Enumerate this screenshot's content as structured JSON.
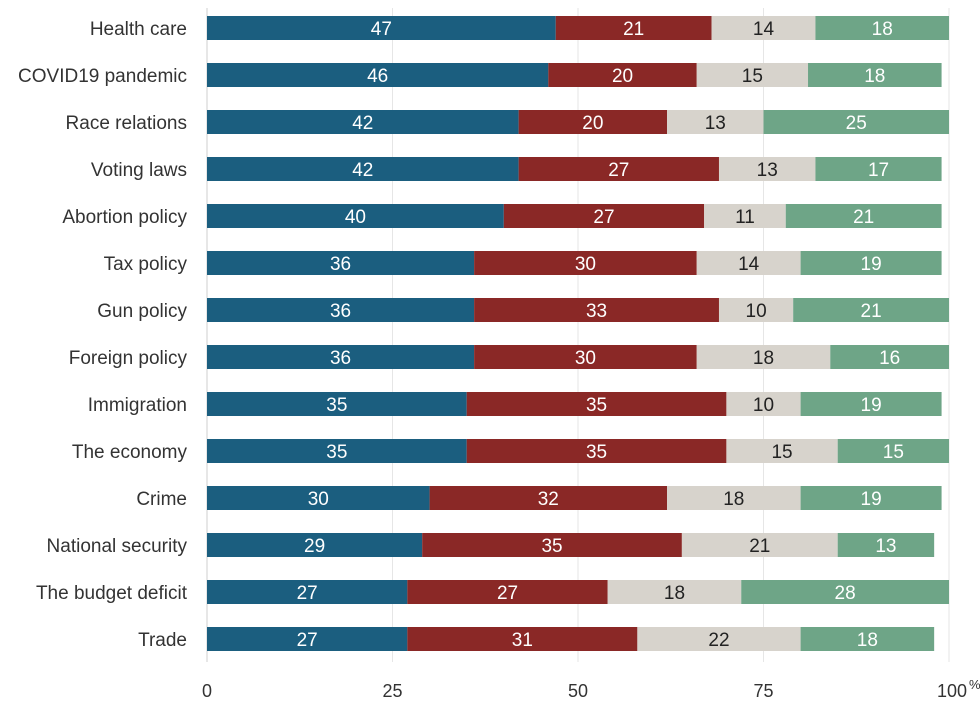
{
  "chart_data": {
    "type": "bar",
    "orientation": "horizontal",
    "stacked": true,
    "categories": [
      "Health care",
      "COVID19 pandemic",
      "Race relations",
      "Voting laws",
      "Abortion policy",
      "Tax policy",
      "Gun policy",
      "Foreign policy",
      "Immigration",
      "The economy",
      "Crime",
      "National security",
      "The budget deficit",
      "Trade"
    ],
    "series": [
      {
        "color": "#1b5e7f",
        "label_color": "#ffffff",
        "values": [
          47,
          46,
          42,
          42,
          40,
          36,
          36,
          36,
          35,
          35,
          30,
          29,
          27,
          27
        ]
      },
      {
        "color": "#8a2826",
        "label_color": "#ffffff",
        "values": [
          21,
          20,
          20,
          27,
          27,
          30,
          33,
          30,
          35,
          35,
          32,
          35,
          27,
          31
        ]
      },
      {
        "color": "#d7d3cc",
        "label_color": "#222222",
        "values": [
          14,
          15,
          13,
          13,
          11,
          14,
          10,
          18,
          10,
          15,
          18,
          21,
          18,
          22
        ]
      },
      {
        "color": "#6ea587",
        "label_color": "#ffffff",
        "values": [
          18,
          18,
          25,
          17,
          21,
          19,
          21,
          16,
          19,
          15,
          19,
          13,
          28,
          18
        ]
      }
    ],
    "xlim": [
      0,
      100
    ],
    "xticks": [
      {
        "value": 0,
        "label": "0"
      },
      {
        "value": 25,
        "label": "25"
      },
      {
        "value": 50,
        "label": "50"
      },
      {
        "value": 75,
        "label": "75"
      },
      {
        "value": 100,
        "label": "100"
      }
    ],
    "x_unit": "%",
    "grid": "vertical",
    "legend": "none"
  }
}
